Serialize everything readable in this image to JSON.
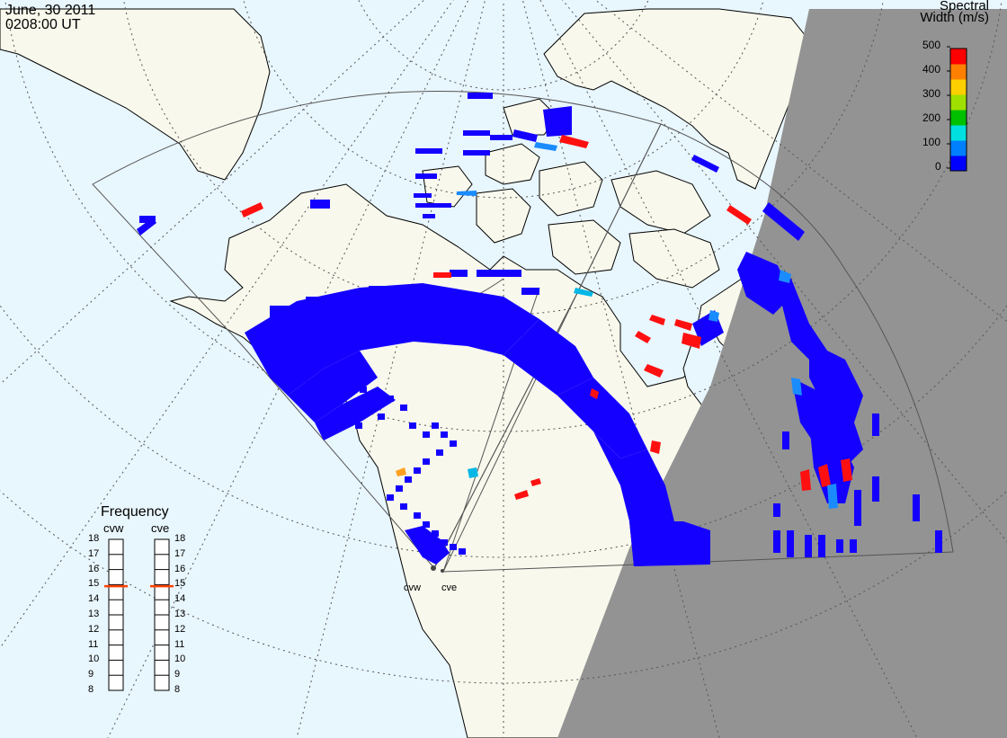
{
  "header": {
    "date": "June, 30 2011",
    "time": "0208:00 UT"
  },
  "legend": {
    "title_line1": "Spectral",
    "title_line2": "Width (m/s)",
    "ticks": [
      "500",
      "400",
      "300",
      "200",
      "100",
      "0"
    ],
    "colors": [
      "#0000ff",
      "#0080ff",
      "#00e0e0",
      "#00c000",
      "#a0e000",
      "#ffd000",
      "#ff8000",
      "#ff0000"
    ]
  },
  "frequency": {
    "title": "Frequency",
    "radars": [
      {
        "code": "cvw",
        "value_mhz": 14.9
      },
      {
        "code": "cve",
        "value_mhz": 14.9
      }
    ],
    "ticks": [
      "18",
      "17",
      "16",
      "15",
      "14",
      "13",
      "12",
      "11",
      "10",
      "9",
      "8"
    ],
    "marker_color": "#ff4000"
  },
  "map": {
    "colors": {
      "ocean": "#e8f6fd",
      "land": "#f8f8ec",
      "night": "#939393",
      "coast": "#000000",
      "grid": "#555555"
    },
    "radar_sites": [
      {
        "code": "cvw"
      },
      {
        "code": "cve"
      }
    ]
  }
}
